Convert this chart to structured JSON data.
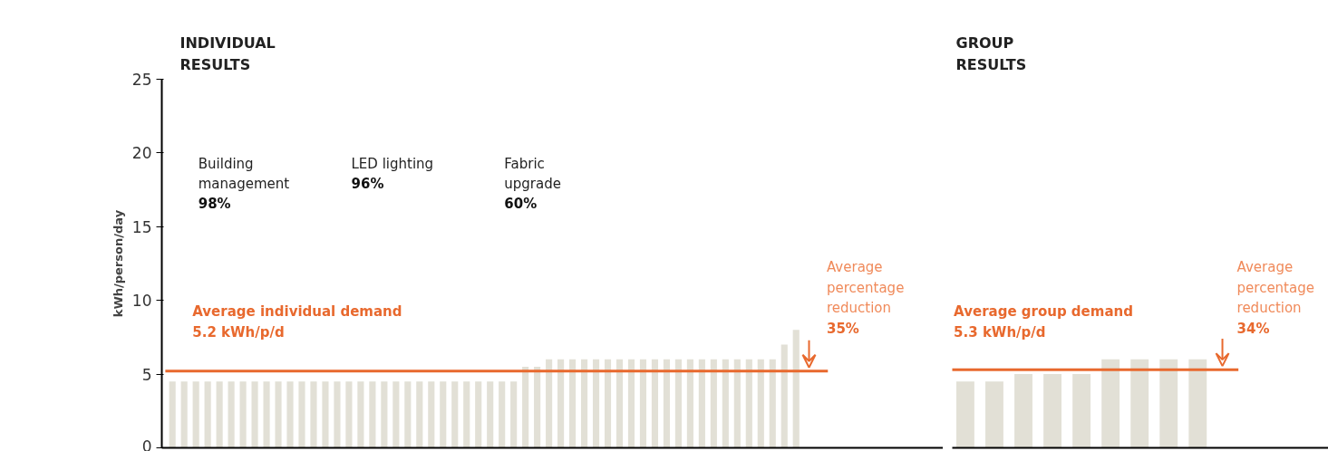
{
  "chart_data": [
    {
      "type": "bar",
      "title": "INDIVIDUAL RESULTS",
      "ylabel": "kWh/person/day",
      "categories": [
        null,
        null,
        null,
        null,
        null,
        null,
        null,
        null,
        null,
        null,
        null,
        null,
        null,
        null,
        null,
        null,
        null,
        null,
        null,
        null,
        null,
        null,
        null,
        null,
        null,
        null,
        null,
        null,
        null,
        null,
        null,
        null,
        null,
        null,
        null,
        null,
        null,
        null,
        null,
        null,
        null,
        null,
        null,
        null,
        null,
        null,
        null,
        null,
        null,
        null,
        null,
        null,
        null,
        null
      ],
      "values": [
        4.5,
        4.5,
        4.5,
        4.5,
        4.5,
        4.5,
        4.5,
        4.5,
        4.5,
        4.5,
        4.5,
        4.5,
        4.5,
        4.5,
        4.5,
        4.5,
        4.5,
        4.5,
        4.5,
        4.5,
        4.5,
        4.5,
        4.5,
        4.5,
        4.5,
        4.5,
        4.5,
        4.5,
        4.5,
        4.5,
        5.5,
        5.5,
        6,
        6,
        6,
        6,
        6,
        6,
        6,
        6,
        6,
        6,
        6,
        6,
        6,
        6,
        6,
        6,
        6,
        6,
        6,
        6,
        7,
        8
      ],
      "color": "#e2e0d6",
      "ylim": [
        0,
        25
      ],
      "yticks": [
        0,
        5,
        10,
        15,
        20,
        25
      ],
      "grid": false,
      "ref_lines": [
        {
          "axis": "y",
          "value": 5.2,
          "label": "Average individual demand\n5.2 kWh/p/d",
          "color": "#e8692e"
        }
      ],
      "annotations": [
        "Building\nmanagement\n98%",
        "LED lighting\n96%",
        "Fabric\nupgrade\n60%",
        "Average\npercentage\nreduction\n35%"
      ]
    },
    {
      "type": "bar",
      "title": "GROUP RESULTS",
      "categories": [
        null,
        null,
        null,
        null,
        null,
        null,
        null,
        null,
        null
      ],
      "values": [
        4.5,
        4.5,
        5,
        5,
        5,
        6,
        6,
        6,
        6
      ],
      "color": "#e2e0d6",
      "ylim": [
        0,
        25
      ],
      "tick_labels": false,
      "grid": false,
      "ref_lines": [
        {
          "axis": "y",
          "value": 5.3,
          "label": "Average group demand\n5.3 kWh/p/d",
          "color": "#e8692e"
        }
      ],
      "annotations": [
        "Average\npercentage\nreduction\n34%"
      ]
    }
  ]
}
